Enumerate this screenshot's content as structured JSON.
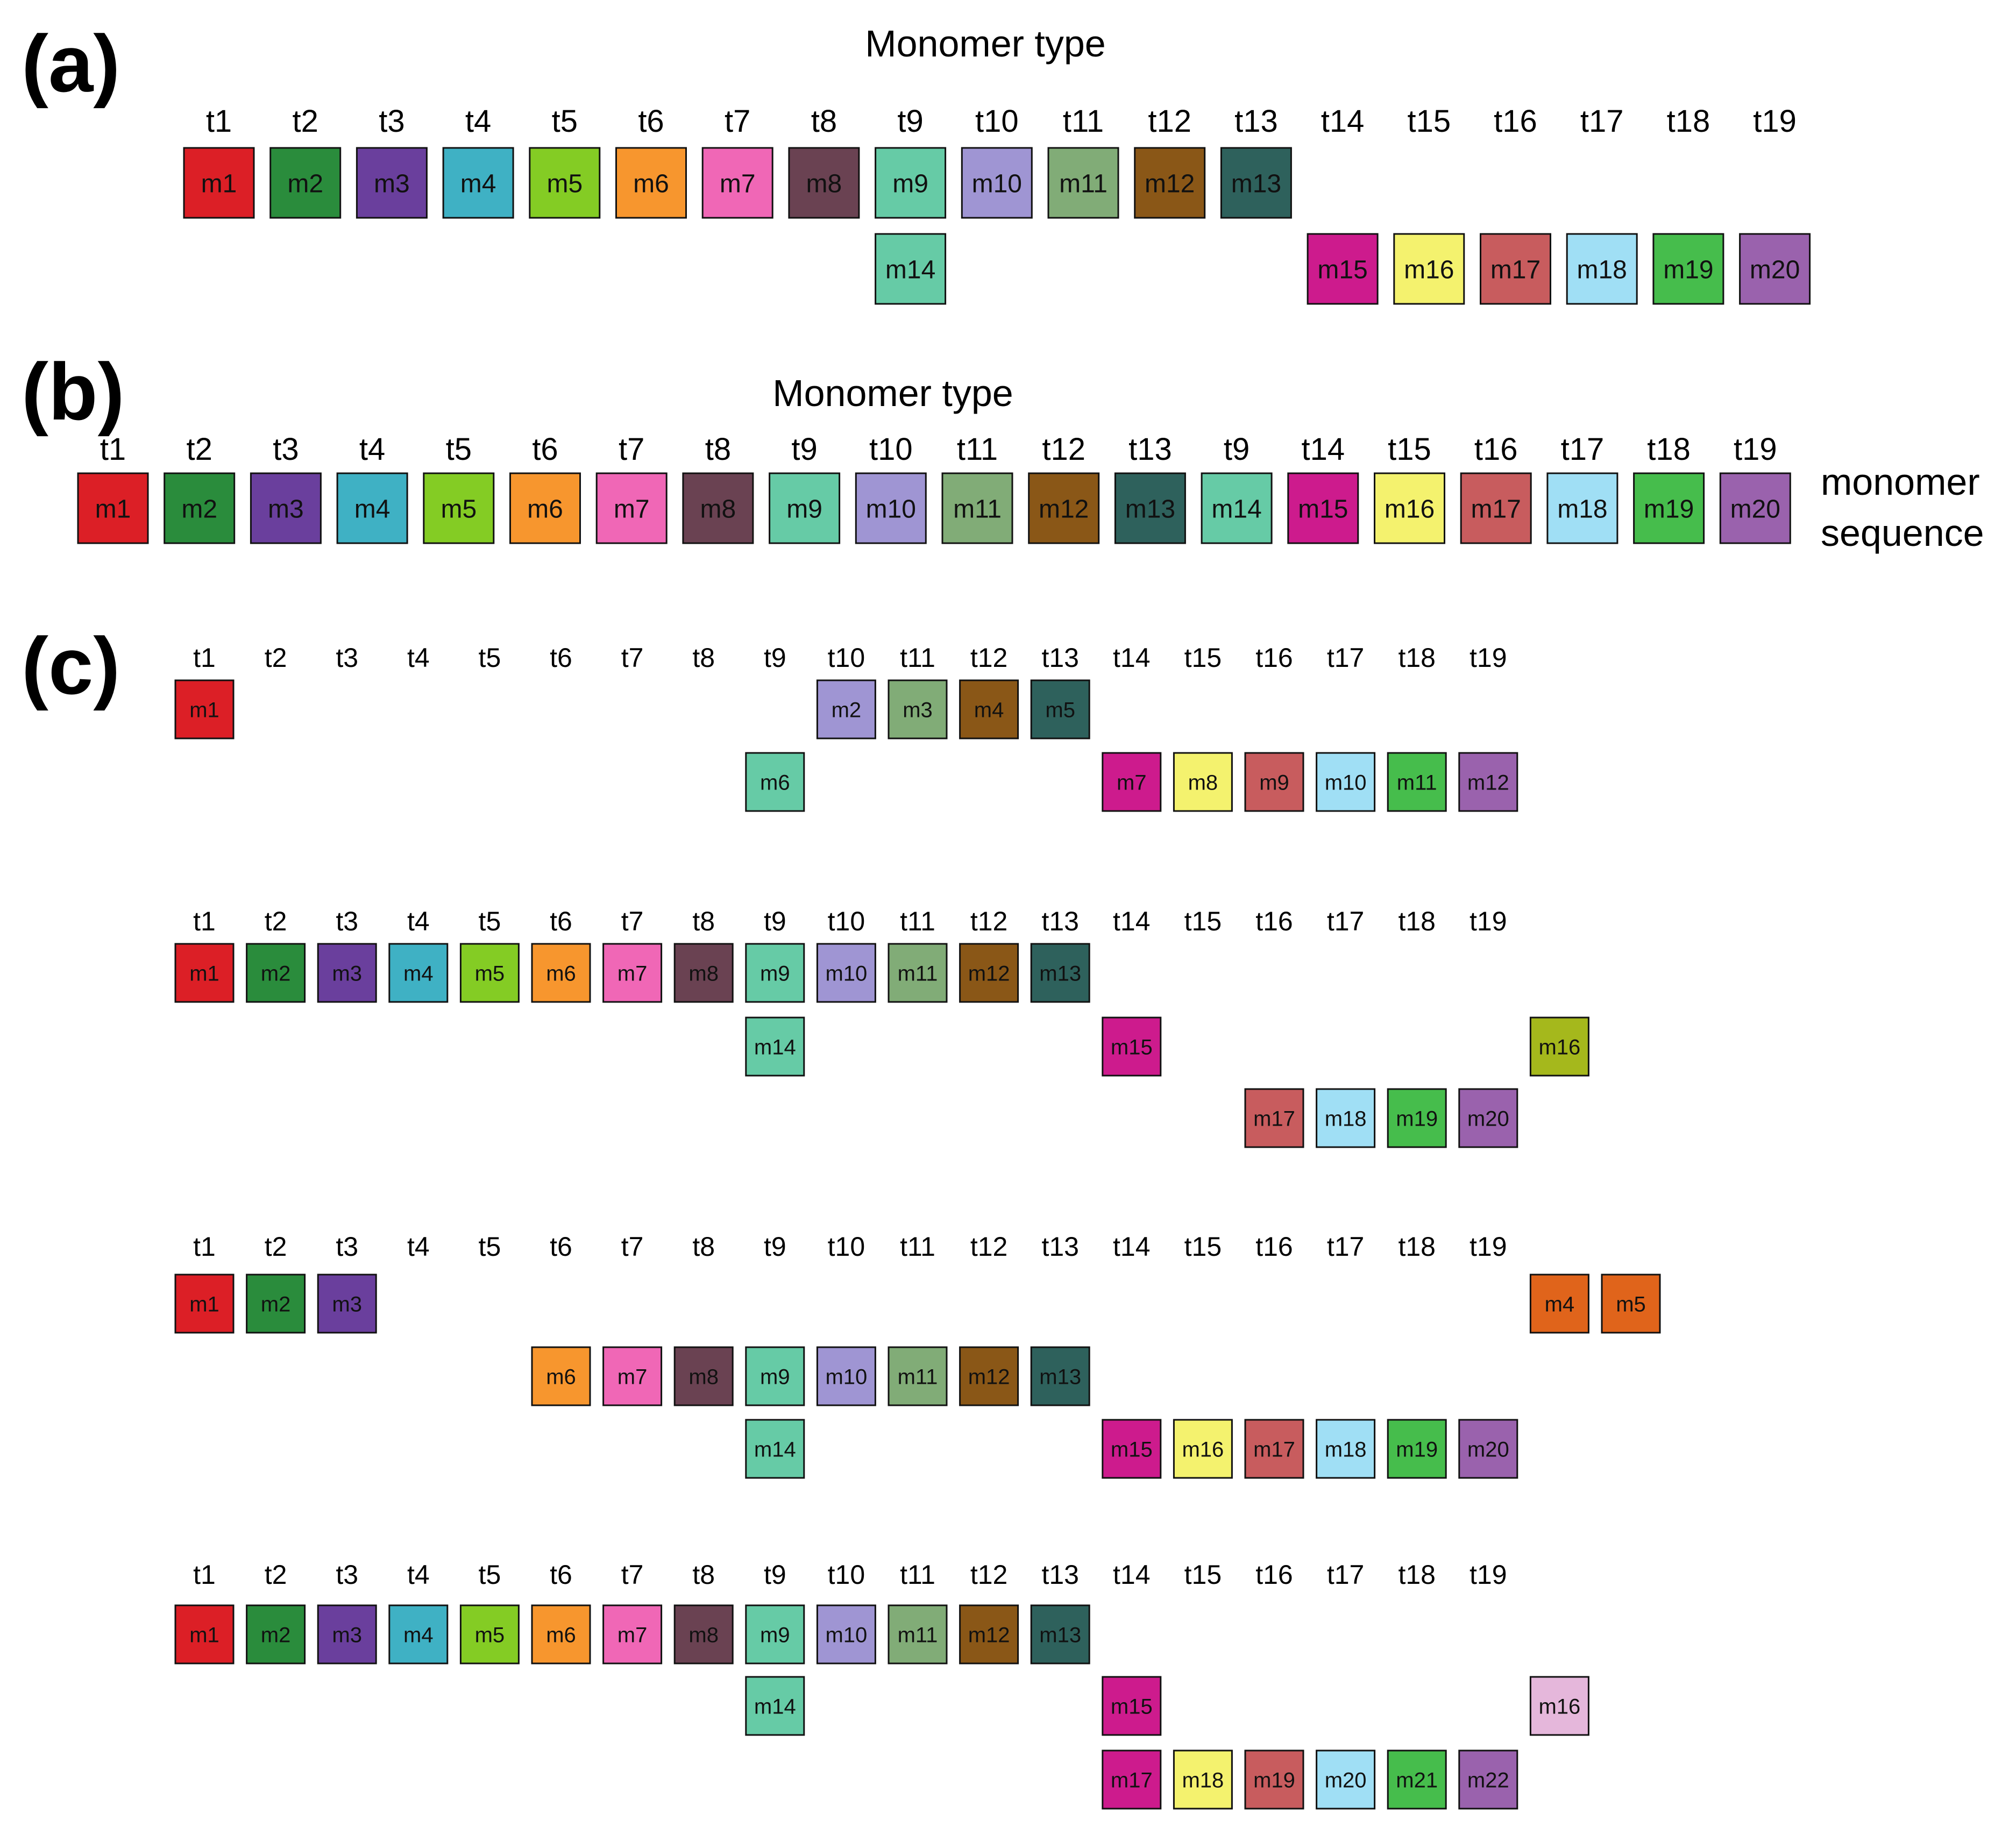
{
  "panels": [
    {
      "id": "a",
      "label": "(a)",
      "heading": "Monomer type",
      "types": [
        "t1",
        "t2",
        "t3",
        "t4",
        "t5",
        "t6",
        "t7",
        "t8",
        "t9",
        "t10",
        "t11",
        "t12",
        "t13",
        "t14",
        "t15",
        "t16",
        "t17",
        "t18",
        "t19"
      ],
      "side_label": [],
      "rows": [
        [
          {
            "m": "m1",
            "t": 1,
            "c": "#dc1f26"
          },
          {
            "m": "m2",
            "t": 2,
            "c": "#2a8c3c"
          },
          {
            "m": "m3",
            "t": 3,
            "c": "#6a3f9d"
          },
          {
            "m": "m4",
            "t": 4,
            "c": "#3fb1c4"
          },
          {
            "m": "m5",
            "t": 5,
            "c": "#84cc24"
          },
          {
            "m": "m6",
            "t": 6,
            "c": "#f7962e"
          },
          {
            "m": "m7",
            "t": 7,
            "c": "#f067b6"
          },
          {
            "m": "m8",
            "t": 8,
            "c": "#6a4252"
          },
          {
            "m": "m9",
            "t": 9,
            "c": "#66cba6"
          },
          {
            "m": "m10",
            "t": 10,
            "c": "#9f95d3"
          },
          {
            "m": "m11",
            "t": 11,
            "c": "#81ac77"
          },
          {
            "m": "m12",
            "t": 12,
            "c": "#8a5717"
          },
          {
            "m": "m13",
            "t": 13,
            "c": "#2e615c"
          }
        ],
        [
          {
            "m": "m14",
            "t": 9,
            "c": "#66cba6"
          },
          {
            "m": "m15",
            "t": 14,
            "c": "#cd1b8d"
          },
          {
            "m": "m16",
            "t": 15,
            "c": "#f4f26e"
          },
          {
            "m": "m17",
            "t": 16,
            "c": "#c85c5e"
          },
          {
            "m": "m18",
            "t": 17,
            "c": "#a0dff5"
          },
          {
            "m": "m19",
            "t": 18,
            "c": "#46bd4c"
          },
          {
            "m": "m20",
            "t": 19,
            "c": "#9a62ad"
          }
        ]
      ]
    },
    {
      "id": "b",
      "label": "(b)",
      "heading": "Monomer type",
      "types": [
        "t1",
        "t2",
        "t3",
        "t4",
        "t5",
        "t6",
        "t7",
        "t8",
        "t9",
        "t10",
        "t11",
        "t12",
        "t13",
        "t9",
        "t14",
        "t15",
        "t16",
        "t17",
        "t18",
        "t19"
      ],
      "side_label": [
        "monomer",
        "sequence"
      ],
      "rows": [
        [
          {
            "m": "m1",
            "t": 1,
            "c": "#dc1f26"
          },
          {
            "m": "m2",
            "t": 2,
            "c": "#2a8c3c"
          },
          {
            "m": "m3",
            "t": 3,
            "c": "#6a3f9d"
          },
          {
            "m": "m4",
            "t": 4,
            "c": "#3fb1c4"
          },
          {
            "m": "m5",
            "t": 5,
            "c": "#84cc24"
          },
          {
            "m": "m6",
            "t": 6,
            "c": "#f7962e"
          },
          {
            "m": "m7",
            "t": 7,
            "c": "#f067b6"
          },
          {
            "m": "m8",
            "t": 8,
            "c": "#6a4252"
          },
          {
            "m": "m9",
            "t": 9,
            "c": "#66cba6"
          },
          {
            "m": "m10",
            "t": 10,
            "c": "#9f95d3"
          },
          {
            "m": "m11",
            "t": 11,
            "c": "#81ac77"
          },
          {
            "m": "m12",
            "t": 12,
            "c": "#8a5717"
          },
          {
            "m": "m13",
            "t": 13,
            "c": "#2e615c"
          },
          {
            "m": "m14",
            "t": 14,
            "c": "#66cba6"
          },
          {
            "m": "m15",
            "t": 15,
            "c": "#cd1b8d"
          },
          {
            "m": "m16",
            "t": 16,
            "c": "#f4f26e"
          },
          {
            "m": "m17",
            "t": 17,
            "c": "#c85c5e"
          },
          {
            "m": "m18",
            "t": 18,
            "c": "#a0dff5"
          },
          {
            "m": "m19",
            "t": 19,
            "c": "#46bd4c"
          },
          {
            "m": "m20",
            "t": 20,
            "c": "#9a62ad"
          }
        ]
      ]
    },
    {
      "id": "c1",
      "label": "(c)",
      "heading": "",
      "types": [
        "t1",
        "t2",
        "t3",
        "t4",
        "t5",
        "t6",
        "t7",
        "t8",
        "t9",
        "t10",
        "t11",
        "t12",
        "t13",
        "t14",
        "t15",
        "t16",
        "t17",
        "t18",
        "t19"
      ],
      "side_label": [],
      "rows": [
        [
          {
            "m": "m1",
            "t": 1,
            "c": "#dc1f26"
          },
          {
            "m": "m2",
            "t": 10,
            "c": "#9f95d3"
          },
          {
            "m": "m3",
            "t": 11,
            "c": "#81ac77"
          },
          {
            "m": "m4",
            "t": 12,
            "c": "#8a5717"
          },
          {
            "m": "m5",
            "t": 13,
            "c": "#2e615c"
          }
        ],
        [
          {
            "m": "m6",
            "t": 9,
            "c": "#66cba6"
          },
          {
            "m": "m7",
            "t": 14,
            "c": "#cd1b8d"
          },
          {
            "m": "m8",
            "t": 15,
            "c": "#f4f26e"
          },
          {
            "m": "m9",
            "t": 16,
            "c": "#c85c5e"
          },
          {
            "m": "m10",
            "t": 17,
            "c": "#a0dff5"
          },
          {
            "m": "m11",
            "t": 18,
            "c": "#46bd4c"
          },
          {
            "m": "m12",
            "t": 19,
            "c": "#9a62ad"
          }
        ]
      ]
    },
    {
      "id": "c2",
      "label": "",
      "heading": "",
      "types": [
        "t1",
        "t2",
        "t3",
        "t4",
        "t5",
        "t6",
        "t7",
        "t8",
        "t9",
        "t10",
        "t11",
        "t12",
        "t13",
        "t14",
        "t15",
        "t16",
        "t17",
        "t18",
        "t19"
      ],
      "side_label": [],
      "rows": [
        [
          {
            "m": "m1",
            "t": 1,
            "c": "#dc1f26"
          },
          {
            "m": "m2",
            "t": 2,
            "c": "#2a8c3c"
          },
          {
            "m": "m3",
            "t": 3,
            "c": "#6a3f9d"
          },
          {
            "m": "m4",
            "t": 4,
            "c": "#3fb1c4"
          },
          {
            "m": "m5",
            "t": 5,
            "c": "#84cc24"
          },
          {
            "m": "m6",
            "t": 6,
            "c": "#f7962e"
          },
          {
            "m": "m7",
            "t": 7,
            "c": "#f067b6"
          },
          {
            "m": "m8",
            "t": 8,
            "c": "#6a4252"
          },
          {
            "m": "m9",
            "t": 9,
            "c": "#66cba6"
          },
          {
            "m": "m10",
            "t": 10,
            "c": "#9f95d3"
          },
          {
            "m": "m11",
            "t": 11,
            "c": "#81ac77"
          },
          {
            "m": "m12",
            "t": 12,
            "c": "#8a5717"
          },
          {
            "m": "m13",
            "t": 13,
            "c": "#2e615c"
          }
        ],
        [
          {
            "m": "m14",
            "t": 9,
            "c": "#66cba6"
          },
          {
            "m": "m15",
            "t": 14,
            "c": "#cd1b8d"
          },
          {
            "m": "m16",
            "t": 20,
            "c": "#a5b81c"
          }
        ],
        [
          {
            "m": "m17",
            "t": 16,
            "c": "#c85c5e"
          },
          {
            "m": "m18",
            "t": 17,
            "c": "#a0dff5"
          },
          {
            "m": "m19",
            "t": 18,
            "c": "#46bd4c"
          },
          {
            "m": "m20",
            "t": 19,
            "c": "#9a62ad"
          }
        ]
      ]
    },
    {
      "id": "c3",
      "label": "",
      "heading": "",
      "types": [
        "t1",
        "t2",
        "t3",
        "t4",
        "t5",
        "t6",
        "t7",
        "t8",
        "t9",
        "t10",
        "t11",
        "t12",
        "t13",
        "t14",
        "t15",
        "t16",
        "t17",
        "t18",
        "t19"
      ],
      "side_label": [],
      "rows": [
        [
          {
            "m": "m1",
            "t": 1,
            "c": "#dc1f26"
          },
          {
            "m": "m2",
            "t": 2,
            "c": "#2a8c3c"
          },
          {
            "m": "m3",
            "t": 3,
            "c": "#6a3f9d"
          },
          {
            "m": "m4",
            "t": 20,
            "c": "#e0641b"
          },
          {
            "m": "m5",
            "t": 21,
            "c": "#e0641b"
          }
        ],
        [
          {
            "m": "m6",
            "t": 6,
            "c": "#f7962e"
          },
          {
            "m": "m7",
            "t": 7,
            "c": "#f067b6"
          },
          {
            "m": "m8",
            "t": 8,
            "c": "#6a4252"
          },
          {
            "m": "m9",
            "t": 9,
            "c": "#66cba6"
          },
          {
            "m": "m10",
            "t": 10,
            "c": "#9f95d3"
          },
          {
            "m": "m11",
            "t": 11,
            "c": "#81ac77"
          },
          {
            "m": "m12",
            "t": 12,
            "c": "#8a5717"
          },
          {
            "m": "m13",
            "t": 13,
            "c": "#2e615c"
          }
        ],
        [
          {
            "m": "m14",
            "t": 9,
            "c": "#66cba6"
          },
          {
            "m": "m15",
            "t": 14,
            "c": "#cd1b8d"
          },
          {
            "m": "m16",
            "t": 15,
            "c": "#f4f26e"
          },
          {
            "m": "m17",
            "t": 16,
            "c": "#c85c5e"
          },
          {
            "m": "m18",
            "t": 17,
            "c": "#a0dff5"
          },
          {
            "m": "m19",
            "t": 18,
            "c": "#46bd4c"
          },
          {
            "m": "m20",
            "t": 19,
            "c": "#9a62ad"
          }
        ]
      ]
    },
    {
      "id": "c4",
      "label": "",
      "heading": "",
      "types": [
        "t1",
        "t2",
        "t3",
        "t4",
        "t5",
        "t6",
        "t7",
        "t8",
        "t9",
        "t10",
        "t11",
        "t12",
        "t13",
        "t14",
        "t15",
        "t16",
        "t17",
        "t18",
        "t19"
      ],
      "side_label": [],
      "rows": [
        [
          {
            "m": "m1",
            "t": 1,
            "c": "#dc1f26"
          },
          {
            "m": "m2",
            "t": 2,
            "c": "#2a8c3c"
          },
          {
            "m": "m3",
            "t": 3,
            "c": "#6a3f9d"
          },
          {
            "m": "m4",
            "t": 4,
            "c": "#3fb1c4"
          },
          {
            "m": "m5",
            "t": 5,
            "c": "#84cc24"
          },
          {
            "m": "m6",
            "t": 6,
            "c": "#f7962e"
          },
          {
            "m": "m7",
            "t": 7,
            "c": "#f067b6"
          },
          {
            "m": "m8",
            "t": 8,
            "c": "#6a4252"
          },
          {
            "m": "m9",
            "t": 9,
            "c": "#66cba6"
          },
          {
            "m": "m10",
            "t": 10,
            "c": "#9f95d3"
          },
          {
            "m": "m11",
            "t": 11,
            "c": "#81ac77"
          },
          {
            "m": "m12",
            "t": 12,
            "c": "#8a5717"
          },
          {
            "m": "m13",
            "t": 13,
            "c": "#2e615c"
          }
        ],
        [
          {
            "m": "m14",
            "t": 9,
            "c": "#66cba6"
          },
          {
            "m": "m15",
            "t": 14,
            "c": "#cd1b8d"
          },
          {
            "m": "m16",
            "t": 20,
            "c": "#e5b7db"
          }
        ],
        [
          {
            "m": "m17",
            "t": 14,
            "c": "#cd1b8d"
          },
          {
            "m": "m18",
            "t": 15,
            "c": "#f4f26e"
          },
          {
            "m": "m19",
            "t": 16,
            "c": "#c85c5e"
          },
          {
            "m": "m20",
            "t": 17,
            "c": "#a0dff5"
          },
          {
            "m": "m21",
            "t": 18,
            "c": "#46bd4c"
          },
          {
            "m": "m22",
            "t": 19,
            "c": "#9a62ad"
          }
        ]
      ]
    }
  ]
}
